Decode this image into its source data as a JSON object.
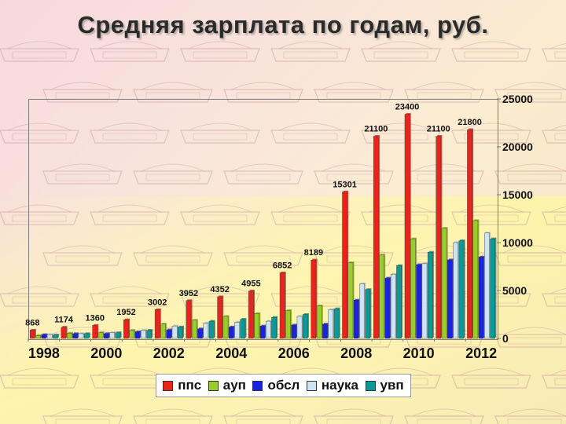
{
  "title": "Средняя зарплата по годам, руб.",
  "chart_data": {
    "type": "bar",
    "title": "Средняя зарплата по годам, руб.",
    "categories": [
      "1998",
      "1999",
      "2000",
      "2001",
      "2002",
      "2003",
      "2004",
      "2005",
      "2006",
      "2007",
      "2008",
      "2009",
      "2010",
      "2011",
      "2012"
    ],
    "x_tick_labels": [
      "1998",
      "2000",
      "2002",
      "2004",
      "2006",
      "2008",
      "2010",
      "2012"
    ],
    "y_tick_labels": [
      "0",
      "5000",
      "10000",
      "15000",
      "20000",
      "25000"
    ],
    "ylim": [
      0,
      25000
    ],
    "y_axis_position": "right",
    "grid": false,
    "legend_position": "bottom",
    "series": [
      {
        "name": "ппс",
        "color": "#e8241c",
        "values": [
          868,
          1174,
          1360,
          1952,
          3002,
          3952,
          4352,
          4955,
          6852,
          8189,
          15301,
          21100,
          23400,
          21100,
          21800
        ],
        "value_labels": [
          "868",
          "1174",
          "1360",
          "1952",
          "3002",
          "3952",
          "4352",
          "4955",
          "6852",
          "8189",
          "15301",
          "21100",
          "23400",
          "21100",
          "21800"
        ]
      },
      {
        "name": "ауп",
        "color": "#9acc2a",
        "values": [
          300,
          550,
          600,
          850,
          1500,
          1900,
          2300,
          2600,
          2900,
          3400,
          7900,
          8700,
          10400,
          11500,
          12300
        ]
      },
      {
        "name": "обсл",
        "color": "#1a24e0",
        "values": [
          400,
          500,
          500,
          700,
          900,
          1000,
          1200,
          1300,
          1400,
          1500,
          4000,
          6300,
          7700,
          8200,
          8500
        ]
      },
      {
        "name": "наука",
        "color": "#cce4f4",
        "values": [
          400,
          500,
          600,
          850,
          1300,
          1600,
          1700,
          1800,
          2300,
          3000,
          5700,
          6700,
          7800,
          10000,
          11000
        ]
      },
      {
        "name": "увп",
        "color": "#0e9999",
        "values": [
          350,
          500,
          600,
          850,
          1200,
          1800,
          2000,
          2200,
          2500,
          3100,
          5100,
          7600,
          9000,
          10200,
          10400
        ]
      }
    ]
  }
}
